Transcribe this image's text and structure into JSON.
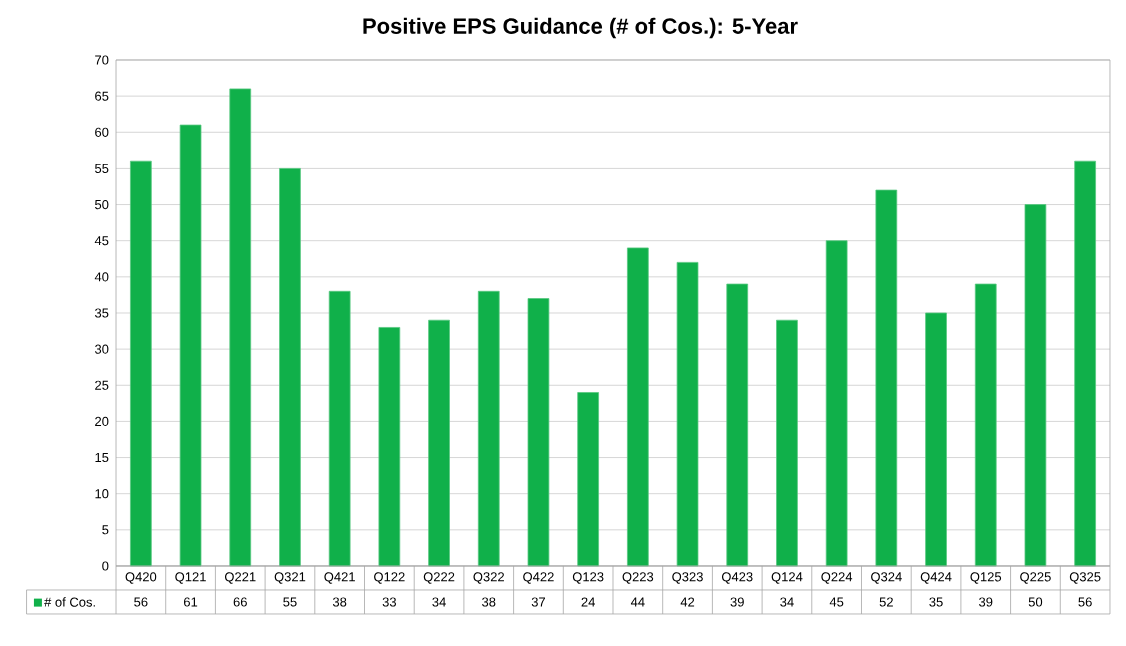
{
  "chart_data": {
    "type": "bar",
    "title": "Positive EPS Guidance (# of Cos.): 5-Year",
    "categories": [
      "Q420",
      "Q121",
      "Q221",
      "Q321",
      "Q421",
      "Q122",
      "Q222",
      "Q322",
      "Q422",
      "Q123",
      "Q223",
      "Q323",
      "Q423",
      "Q124",
      "Q224",
      "Q324",
      "Q424",
      "Q125",
      "Q225",
      "Q325"
    ],
    "series": [
      {
        "name": "# of Cos.",
        "color": "#10b04a",
        "values": [
          56,
          61,
          66,
          55,
          38,
          33,
          34,
          38,
          37,
          24,
          44,
          42,
          39,
          34,
          45,
          52,
          35,
          39,
          50,
          56
        ]
      }
    ],
    "ylim": [
      0,
      70
    ],
    "yticks": [
      0,
      5,
      10,
      15,
      20,
      25,
      30,
      35,
      40,
      45,
      50,
      55,
      60,
      65,
      70
    ],
    "grid": "y",
    "legend": "bottom",
    "data_labels": true
  }
}
